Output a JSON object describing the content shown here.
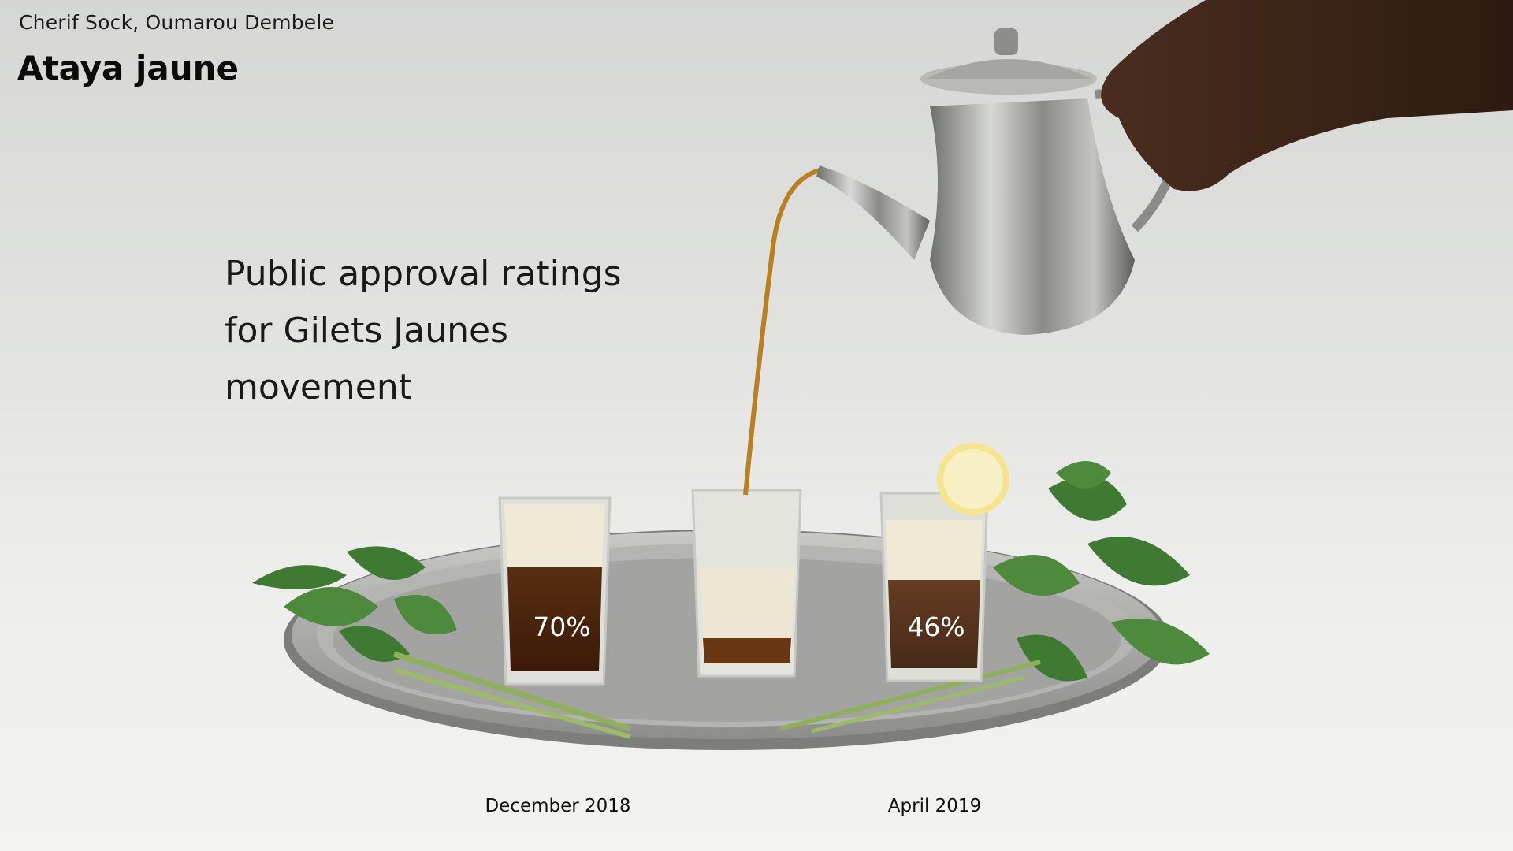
{
  "header": {
    "authors": "Cherif Sock, Oumarou Dembele",
    "title": "Ataya jaune"
  },
  "chart_data": {
    "type": "bar",
    "title": "Public approval ratings for Gilets Jaunes movement",
    "title_lines": [
      "Public approval ratings",
      "for Gilets Jaunes",
      "movement"
    ],
    "categories": [
      "December 2018",
      "April 2019"
    ],
    "values": [
      70,
      46
    ],
    "value_labels": [
      "70%",
      "46%"
    ],
    "unit": "%",
    "ylim": [
      0,
      100
    ],
    "encoding": "tea fill level in glasses",
    "colors": {
      "tea": "#4a2410",
      "foam": "#efe9d6",
      "background": "#e2e3e0"
    }
  }
}
